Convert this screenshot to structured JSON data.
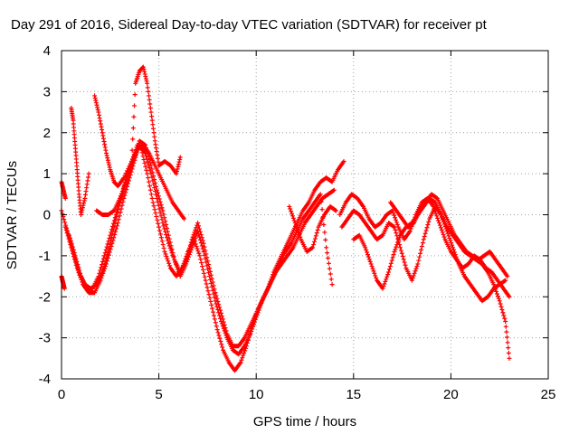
{
  "chart_data": {
    "type": "scatter",
    "title": "Day 291 of 2016, Sidereal Day-to-day VTEC variation (SDTVAR) for receiver pt",
    "xlabel": "GPS time / hours",
    "ylabel": "SDTVAR / TECUs",
    "xlim": [
      0,
      25
    ],
    "ylim": [
      -4,
      4
    ],
    "xticks": [
      0,
      5,
      10,
      15,
      20,
      25
    ],
    "yticks": [
      -4,
      -3,
      -2,
      -1,
      0,
      1,
      2,
      3,
      4
    ],
    "grid": true,
    "marker": "+",
    "color": "#ff0000",
    "series": [
      {
        "x": [
          0,
          0.3,
          0.6,
          0.9,
          1.2,
          1.5,
          1.8,
          2.1,
          2.4,
          2.7,
          3.0,
          3.3,
          3.6,
          3.9,
          4.1,
          4.4,
          4.7,
          5.0,
          5.3,
          5.6,
          5.9,
          6.2,
          6.5,
          6.8,
          7.1,
          7.4,
          7.7,
          8.0,
          8.3,
          8.6,
          8.9,
          9.2,
          9.5,
          9.8,
          10.1,
          10.4,
          10.7,
          11.0,
          11.3,
          11.6,
          11.9,
          12.2,
          12.5,
          12.8,
          13.1,
          13.4,
          13.7,
          14.0
        ],
        "y": [
          0.1,
          -0.4,
          -0.9,
          -1.4,
          -1.7,
          -1.8,
          -1.7,
          -1.4,
          -0.9,
          -0.3,
          0.3,
          0.8,
          1.3,
          1.7,
          1.6,
          1.0,
          0.3,
          -0.3,
          -0.9,
          -1.3,
          -1.5,
          -1.3,
          -0.9,
          -0.6,
          -1.0,
          -1.6,
          -2.2,
          -2.8,
          -3.3,
          -3.6,
          -3.8,
          -3.6,
          -3.2,
          -2.7,
          -2.3,
          -2.0,
          -1.7,
          -1.4,
          -1.2,
          -1.0,
          -0.8,
          -0.5,
          -0.2,
          0.0,
          0.2,
          0.4,
          0.5,
          0.6
        ]
      },
      {
        "x": [
          0.2,
          0.5,
          0.8,
          1.1,
          1.4,
          1.7,
          2.0,
          2.3,
          2.6,
          2.9,
          3.2,
          3.5,
          3.8,
          4.0,
          4.3,
          4.6,
          4.9,
          5.2,
          5.5,
          5.8,
          6.1,
          6.4,
          6.7,
          7.0,
          7.3,
          7.6,
          7.9,
          8.2,
          8.5,
          8.8,
          9.1,
          9.4,
          9.7,
          10.0,
          10.3,
          10.6,
          10.9,
          11.2,
          11.5,
          11.8,
          12.1,
          12.4,
          12.7,
          13.0,
          13.3,
          13.6,
          13.9,
          14.2,
          14.5
        ],
        "y": [
          -0.3,
          -0.8,
          -1.3,
          -1.7,
          -1.9,
          -1.9,
          -1.6,
          -1.2,
          -0.7,
          -0.2,
          0.4,
          0.9,
          1.4,
          1.8,
          1.7,
          1.2,
          0.6,
          0.1,
          -0.5,
          -1.1,
          -1.5,
          -1.2,
          -0.8,
          -0.4,
          -0.9,
          -1.5,
          -2.1,
          -2.6,
          -3.0,
          -3.3,
          -3.4,
          -3.2,
          -2.9,
          -2.5,
          -2.1,
          -1.8,
          -1.4,
          -1.1,
          -0.8,
          -0.5,
          -0.2,
          0.1,
          0.3,
          0.6,
          0.8,
          0.9,
          0.8,
          1.1,
          1.3
        ]
      },
      {
        "x": [
          0.4,
          0.7,
          1.0,
          1.3,
          1.6,
          1.9,
          2.2,
          2.5,
          2.8,
          3.1,
          3.4,
          3.7,
          4.0,
          4.3,
          4.6,
          4.9,
          5.2,
          5.5,
          5.8,
          6.1,
          6.4,
          6.7,
          7.0,
          7.3,
          7.6,
          7.9,
          8.2,
          8.5,
          8.8,
          9.1,
          9.4,
          9.7,
          10.0,
          10.3,
          10.6,
          10.9,
          11.2,
          11.5,
          11.8,
          12.1,
          12.4,
          12.7,
          13.0,
          13.3,
          13.6,
          13.9
        ],
        "y": [
          -0.5,
          -1.0,
          -1.5,
          -1.8,
          -1.8,
          -1.5,
          -1.0,
          -0.5,
          0.0,
          0.5,
          1.0,
          1.4,
          1.7,
          1.5,
          1.0,
          0.4,
          -0.2,
          -0.7,
          -1.1,
          -1.4,
          -1.1,
          -0.6,
          -0.2,
          -0.7,
          -1.3,
          -1.9,
          -2.4,
          -2.9,
          -3.2,
          -3.2,
          -3.0,
          -2.7,
          -2.4,
          -2.1,
          -1.8,
          -1.5,
          -1.2,
          -0.9,
          -0.7,
          -0.4,
          -0.1,
          0.1,
          0.3,
          0.5,
          -0.8,
          -1.7
        ]
      },
      {
        "x": [
          0.5,
          0.6,
          0.7,
          0.8,
          0.9,
          1.0,
          1.2,
          1.4
        ],
        "y": [
          2.6,
          2.3,
          1.7,
          1.1,
          0.5,
          0.0,
          0.4,
          1.0
        ]
      },
      {
        "x": [
          1.7,
          1.9,
          2.1,
          2.3,
          2.5,
          2.7,
          2.9,
          3.2,
          3.6,
          3.8,
          4.0,
          4.2,
          4.4,
          4.6,
          4.8,
          5.0,
          5.3,
          5.6,
          5.9,
          6.1
        ],
        "y": [
          2.9,
          2.5,
          2.0,
          1.5,
          1.1,
          0.8,
          0.7,
          0.9,
          1.3,
          3.2,
          3.5,
          3.6,
          3.2,
          2.5,
          1.8,
          1.2,
          1.3,
          1.2,
          1.0,
          1.4
        ]
      },
      {
        "x": [
          1.8,
          2.1,
          2.4,
          2.7,
          3.0,
          3.3,
          3.6,
          3.9,
          4.2,
          4.5,
          4.8,
          5.1,
          5.4,
          5.7,
          6.0,
          6.3
        ],
        "y": [
          0.1,
          0.0,
          0.0,
          0.1,
          0.4,
          0.8,
          1.2,
          1.6,
          1.7,
          1.5,
          1.2,
          0.9,
          0.6,
          0.3,
          0.1,
          -0.1
        ]
      },
      {
        "x": [
          0.0,
          0.05,
          0.1,
          0.15
        ],
        "y": [
          -1.5,
          -1.6,
          -1.7,
          -1.8
        ]
      },
      {
        "x": [
          0.0,
          0.1,
          0.2
        ],
        "y": [
          0.8,
          0.6,
          0.4
        ]
      },
      {
        "x": [
          11.7,
          12.0,
          12.3,
          12.6,
          12.9,
          13.2,
          13.5,
          13.8,
          14.1
        ],
        "y": [
          0.2,
          -0.2,
          -0.6,
          -0.9,
          -0.8,
          -0.3,
          0.0,
          0.2,
          0.1
        ]
      },
      {
        "x": [
          14.3,
          14.6,
          14.9,
          15.2,
          15.5,
          15.8,
          16.1,
          16.4,
          16.7,
          17.0,
          17.3,
          17.6,
          17.9,
          18.2,
          18.5,
          18.8,
          19.1,
          19.4,
          19.7,
          20.0,
          20.3,
          20.6,
          20.9,
          21.2,
          21.5,
          21.8,
          22.1,
          22.4,
          22.7,
          23.0
        ],
        "y": [
          0.0,
          0.3,
          0.5,
          0.4,
          0.2,
          -0.1,
          -0.3,
          -0.2,
          0.0,
          0.1,
          -0.3,
          -0.6,
          -0.4,
          0.0,
          0.3,
          0.4,
          0.2,
          -0.2,
          -0.6,
          -0.9,
          -1.1,
          -1.3,
          -1.2,
          -1.0,
          -1.1,
          -1.3,
          -1.4,
          -1.6,
          -1.8,
          -2.0
        ]
      },
      {
        "x": [
          14.4,
          14.7,
          15.0,
          15.3,
          15.6,
          15.9,
          16.2,
          16.5,
          16.8,
          17.1,
          17.4,
          17.7,
          18.0,
          18.3,
          18.6,
          18.9,
          19.2,
          19.5,
          19.8,
          20.1,
          20.4,
          20.7,
          21.0,
          21.3,
          21.6,
          21.9,
          22.2,
          22.5,
          22.8
        ],
        "y": [
          -0.3,
          -0.1,
          0.1,
          0.0,
          -0.2,
          -0.4,
          -0.6,
          -0.5,
          -0.2,
          -0.3,
          -0.8,
          -1.3,
          -1.6,
          -1.2,
          -0.6,
          -0.1,
          0.2,
          0.0,
          -0.4,
          -0.8,
          -1.2,
          -1.5,
          -1.7,
          -1.9,
          -2.1,
          -2.0,
          -1.8,
          -1.7,
          -1.6
        ]
      },
      {
        "x": [
          15.0,
          15.3,
          15.6,
          15.9,
          16.2,
          16.5,
          16.8,
          17.1,
          17.4,
          17.7,
          18.0,
          18.3,
          18.6,
          18.9,
          19.2,
          19.5,
          19.8,
          20.1,
          20.4,
          20.7,
          21.0,
          21.3,
          21.6,
          21.9,
          22.2,
          22.5,
          22.8,
          23.0
        ],
        "y": [
          -0.6,
          -0.5,
          -0.8,
          -1.2,
          -1.6,
          -1.8,
          -1.4,
          -0.9,
          -0.5,
          -0.3,
          -0.2,
          0.0,
          0.2,
          0.4,
          0.3,
          0.0,
          -0.3,
          -0.5,
          -0.7,
          -0.9,
          -1.0,
          -1.1,
          -1.2,
          -1.4,
          -1.7,
          -2.1,
          -2.6,
          -3.5
        ]
      },
      {
        "x": [
          16.9,
          17.2,
          17.5,
          17.8,
          18.1,
          18.4,
          18.7,
          19.0,
          19.3,
          19.6,
          19.9,
          20.2,
          20.5,
          20.8,
          21.1,
          21.4,
          21.7,
          22.0,
          22.3,
          22.6,
          22.9
        ],
        "y": [
          0.3,
          0.1,
          -0.1,
          -0.3,
          -0.2,
          0.1,
          0.3,
          0.5,
          0.4,
          0.1,
          -0.2,
          -0.5,
          -0.7,
          -0.9,
          -1.0,
          -1.1,
          -1.0,
          -0.9,
          -1.1,
          -1.3,
          -1.5
        ]
      }
    ]
  }
}
